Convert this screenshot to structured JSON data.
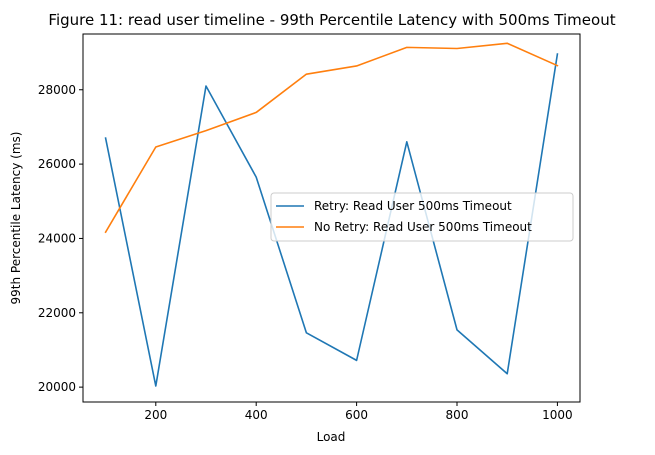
{
  "chart_data": {
    "type": "line",
    "title": "Figure 11: read user timeline - 99th Percentile Latency with 500ms Timeout",
    "xlabel": "Load",
    "ylabel": "99th Percentile Latency (ms)",
    "x": [
      100,
      200,
      300,
      400,
      500,
      600,
      700,
      800,
      900,
      1000
    ],
    "xlim": [
      55,
      1045
    ],
    "ylim": [
      19600,
      29500
    ],
    "xticks": [
      200,
      400,
      600,
      800,
      1000
    ],
    "yticks": [
      20000,
      22000,
      24000,
      26000,
      28000
    ],
    "grid": false,
    "legend_position": "center-right",
    "series": [
      {
        "name": "Retry: Read User 500ms Timeout",
        "color": "#1f77b4",
        "values": [
          26700,
          20030,
          28100,
          25650,
          21460,
          20720,
          26600,
          21540,
          20360,
          28960
        ]
      },
      {
        "name": "No Retry: Read User 500ms Timeout",
        "color": "#ff7f0e",
        "values": [
          24170,
          26460,
          26900,
          27390,
          28420,
          28640,
          29140,
          29110,
          29250,
          28650
        ]
      }
    ]
  }
}
